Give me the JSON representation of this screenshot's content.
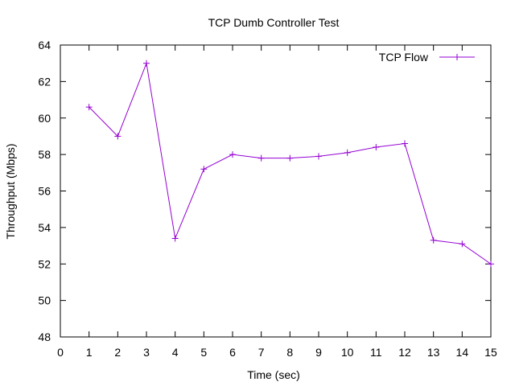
{
  "chart_data": {
    "type": "line",
    "title": "TCP Dumb Controller Test",
    "xlabel": "Time (sec)",
    "ylabel": "Throughput (Mbps)",
    "xlim": [
      0,
      15
    ],
    "ylim": [
      48,
      64
    ],
    "xticks": [
      "0",
      "1",
      "2",
      "3",
      "4",
      "5",
      "6",
      "7",
      "8",
      "9",
      "10",
      "11",
      "12",
      "13",
      "14",
      "15"
    ],
    "yticks": [
      "48",
      "50",
      "52",
      "54",
      "56",
      "58",
      "60",
      "62",
      "64"
    ],
    "grid": false,
    "legend_position": "top-right",
    "series": [
      {
        "name": "TCP Flow",
        "color": "#9400d3",
        "marker": "plus",
        "x": [
          1,
          2,
          3,
          4,
          5,
          6,
          7,
          8,
          9,
          10,
          11,
          12,
          13,
          14,
          15
        ],
        "y": [
          60.6,
          59.0,
          63.0,
          53.4,
          57.2,
          58.0,
          57.8,
          57.8,
          57.9,
          58.1,
          58.4,
          58.6,
          53.3,
          53.1,
          52.0
        ]
      }
    ]
  }
}
